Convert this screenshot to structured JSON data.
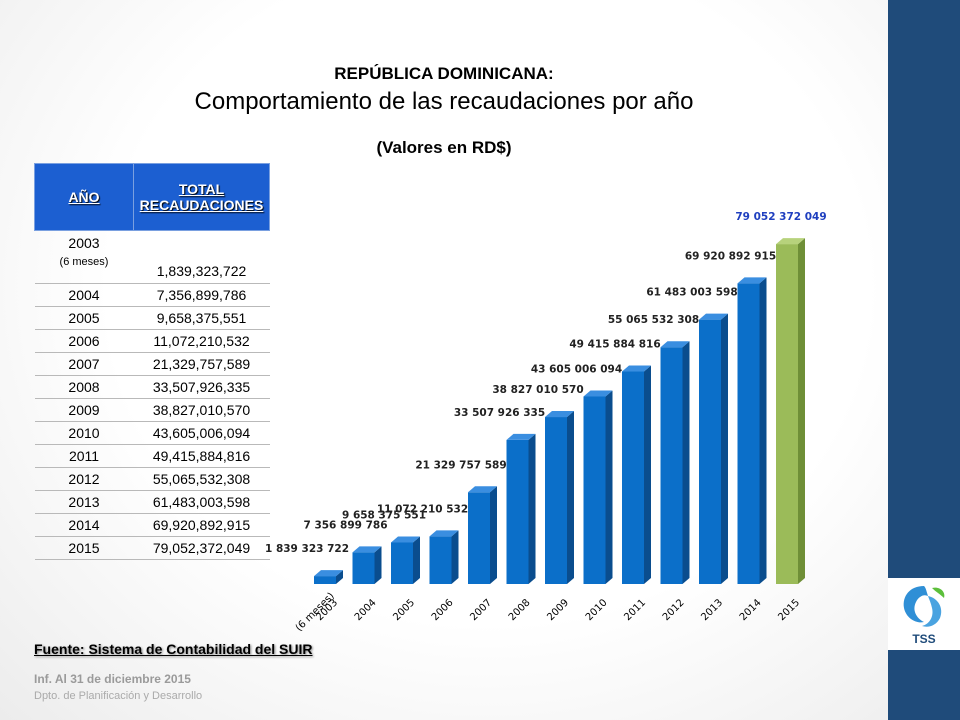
{
  "titles": {
    "country": "REPÚBLICA DOMINICANA:",
    "main": "Comportamiento de las recaudaciones por año",
    "units": "(Valores en RD$)"
  },
  "table": {
    "headers": [
      "AÑO",
      "TOTAL RECAUDACIONES"
    ],
    "rows": [
      {
        "year": "2003",
        "note": "(6 meses)",
        "value": "1,839,323,722"
      },
      {
        "year": "2004",
        "value": "7,356,899,786"
      },
      {
        "year": "2005",
        "value": "9,658,375,551"
      },
      {
        "year": "2006",
        "value": "11,072,210,532"
      },
      {
        "year": "2007",
        "value": "21,329,757,589"
      },
      {
        "year": "2008",
        "value": "33,507,926,335"
      },
      {
        "year": "2009",
        "value": "38,827,010,570"
      },
      {
        "year": "2010",
        "value": "43,605,006,094"
      },
      {
        "year": "2011",
        "value": "49,415,884,816"
      },
      {
        "year": "2012",
        "value": "55,065,532,308"
      },
      {
        "year": "2013",
        "value": "61,483,003,598"
      },
      {
        "year": "2014",
        "value": "69,920,892,915"
      },
      {
        "year": "2015",
        "value": "79,052,372,049"
      }
    ]
  },
  "footer": {
    "source": "Fuente: Sistema de Contabilidad del SUIR",
    "report": "Inf. Al 31 de diciembre 2015",
    "dept": "Dpto. de Planificación y Desarrollo"
  },
  "logo": {
    "text": "TSS",
    "icon": "tss-logo-icon"
  },
  "colors": {
    "bar": "#0b6fc9",
    "bar_highlight": "#9bbb59",
    "header": "#1c5fd1",
    "sidebar": "#1f4b7a",
    "highlight_label": "#1f3fbf"
  },
  "chart_data": {
    "type": "bar",
    "categories": [
      "2003\n(6 meses)",
      "2004",
      "2005",
      "2006",
      "2007",
      "2008",
      "2009",
      "2010",
      "2011",
      "2012",
      "2013",
      "2014",
      "2015"
    ],
    "values": [
      1839323722,
      7356899786,
      9658375551,
      11072210532,
      21329757589,
      33507926335,
      38827010570,
      43605006094,
      49415884816,
      55065532308,
      61483003598,
      69920892915,
      79052372049
    ],
    "labels": [
      "1 839 323 722",
      "7 356 899 786",
      "9 658 375 551",
      "11 072 210 532",
      "21 329 757 589",
      "33 507 926 335",
      "38 827 010 570",
      "43 605 006 094",
      "49 415 884 816",
      "55 065 532 308",
      "61 483 003 598",
      "69 920 892 915",
      "79 052 372 049"
    ],
    "highlight_index": 12,
    "style": "3d-column",
    "ylim": [
      0,
      80000000000
    ],
    "grid": false,
    "legend": "none"
  }
}
